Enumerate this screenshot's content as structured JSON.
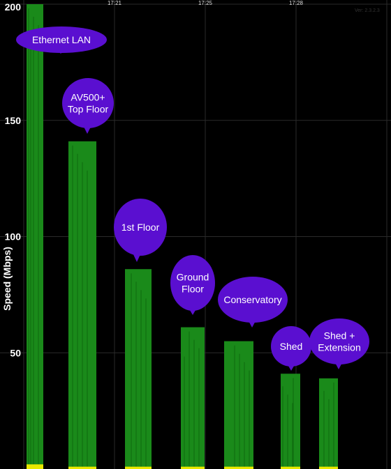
{
  "chart_data": {
    "type": "bar",
    "ylabel": "Speed (Mbps)",
    "ylim": [
      0,
      200
    ],
    "y_ticks": [
      50,
      100,
      150,
      200
    ],
    "time_labels": [
      "17:21",
      "17:25",
      "17:28"
    ],
    "version_text": "Ver: 2.3.2.3",
    "grid": true,
    "series": [
      {
        "values": [
          200,
          141,
          86,
          61,
          55,
          41,
          39
        ]
      }
    ],
    "upload_series": [
      2,
      1,
      1,
      1,
      1,
      1,
      1
    ],
    "categories": [
      "Ethernet LAN",
      "AV500+ Top Floor",
      "1st Floor",
      "Ground Floor",
      "Conservatory",
      "Shed",
      "Shed + Extension"
    ],
    "callouts": [
      {
        "lines": [
          "Ethernet LAN"
        ]
      },
      {
        "lines": [
          "AV500+",
          "Top Floor"
        ]
      },
      {
        "lines": [
          "1st Floor"
        ]
      },
      {
        "lines": [
          "Ground",
          "Floor"
        ]
      },
      {
        "lines": [
          "Conservatory"
        ]
      },
      {
        "lines": [
          "Shed"
        ]
      },
      {
        "lines": [
          "Shed +",
          "Extension"
        ]
      }
    ],
    "colors": {
      "download": "#1a8a1a",
      "download_edge": "#0f6a0f",
      "upload": "#e8e800",
      "callout": "#5a0fd0",
      "grid": "#2a2a2a",
      "background": "#000000"
    }
  }
}
